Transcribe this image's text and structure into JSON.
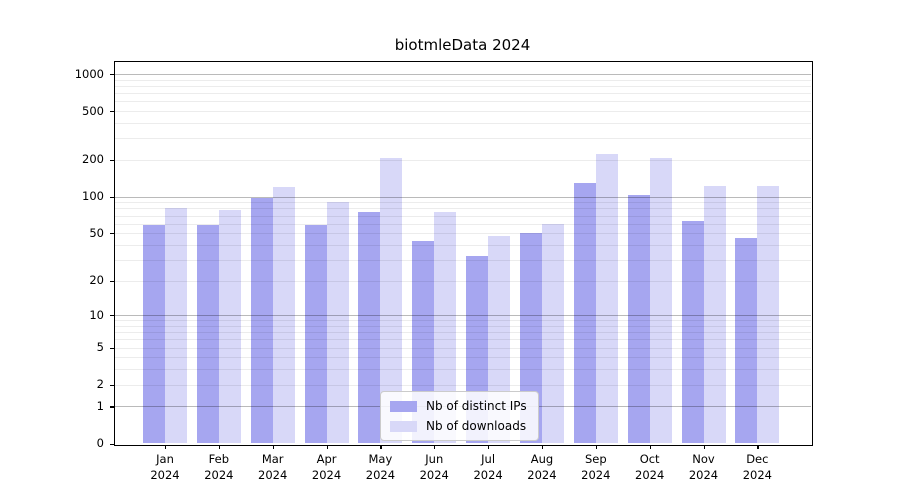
{
  "title": "biotmleData 2024",
  "legend": {
    "items": [
      {
        "label": "Nb of distinct IPs",
        "color": "#a6a6f0"
      },
      {
        "label": "Nb of downloads",
        "color": "#d8d8f8"
      }
    ],
    "position": "lower-center"
  },
  "chart_data": {
    "type": "bar",
    "title": "biotmleData 2024",
    "categories": [
      "Jan",
      "Feb",
      "Mar",
      "Apr",
      "May",
      "Jun",
      "Jul",
      "Aug",
      "Sep",
      "Oct",
      "Nov",
      "Dec"
    ],
    "year": "2024",
    "series": [
      {
        "name": "Nb of distinct IPs",
        "color": "#a6a6f0",
        "values": [
          58,
          58,
          98,
          59,
          75,
          43,
          32,
          50,
          130,
          104,
          63,
          46
        ]
      },
      {
        "name": "Nb of downloads",
        "color": "#d8d8f8",
        "values": [
          81,
          78,
          120,
          90,
          208,
          75,
          47,
          60,
          225,
          207,
          122,
          122
        ]
      }
    ],
    "xlabel": "",
    "ylabel": "",
    "yscale": "log1p",
    "yticks": [
      0,
      1,
      2,
      5,
      10,
      20,
      50,
      100,
      200,
      500,
      1000
    ],
    "major_gridlines": [
      1,
      10,
      100,
      1000
    ],
    "minor_gridlines": [
      2,
      3,
      4,
      5,
      6,
      7,
      8,
      9,
      20,
      30,
      40,
      50,
      60,
      70,
      80,
      90,
      200,
      300,
      400,
      500,
      600,
      700,
      800,
      900
    ],
    "ylim": [
      0,
      1270
    ],
    "grid": true,
    "grid_above_bars": true,
    "legend_position": "lower-center"
  },
  "colors": {
    "background": "#ffffff",
    "spine": "#000000",
    "major_grid": "#b5b5b5",
    "minor_grid": "#ececec",
    "bar_distinct_ips": "#a6a6f0",
    "bar_downloads": "#d8d8f8"
  }
}
